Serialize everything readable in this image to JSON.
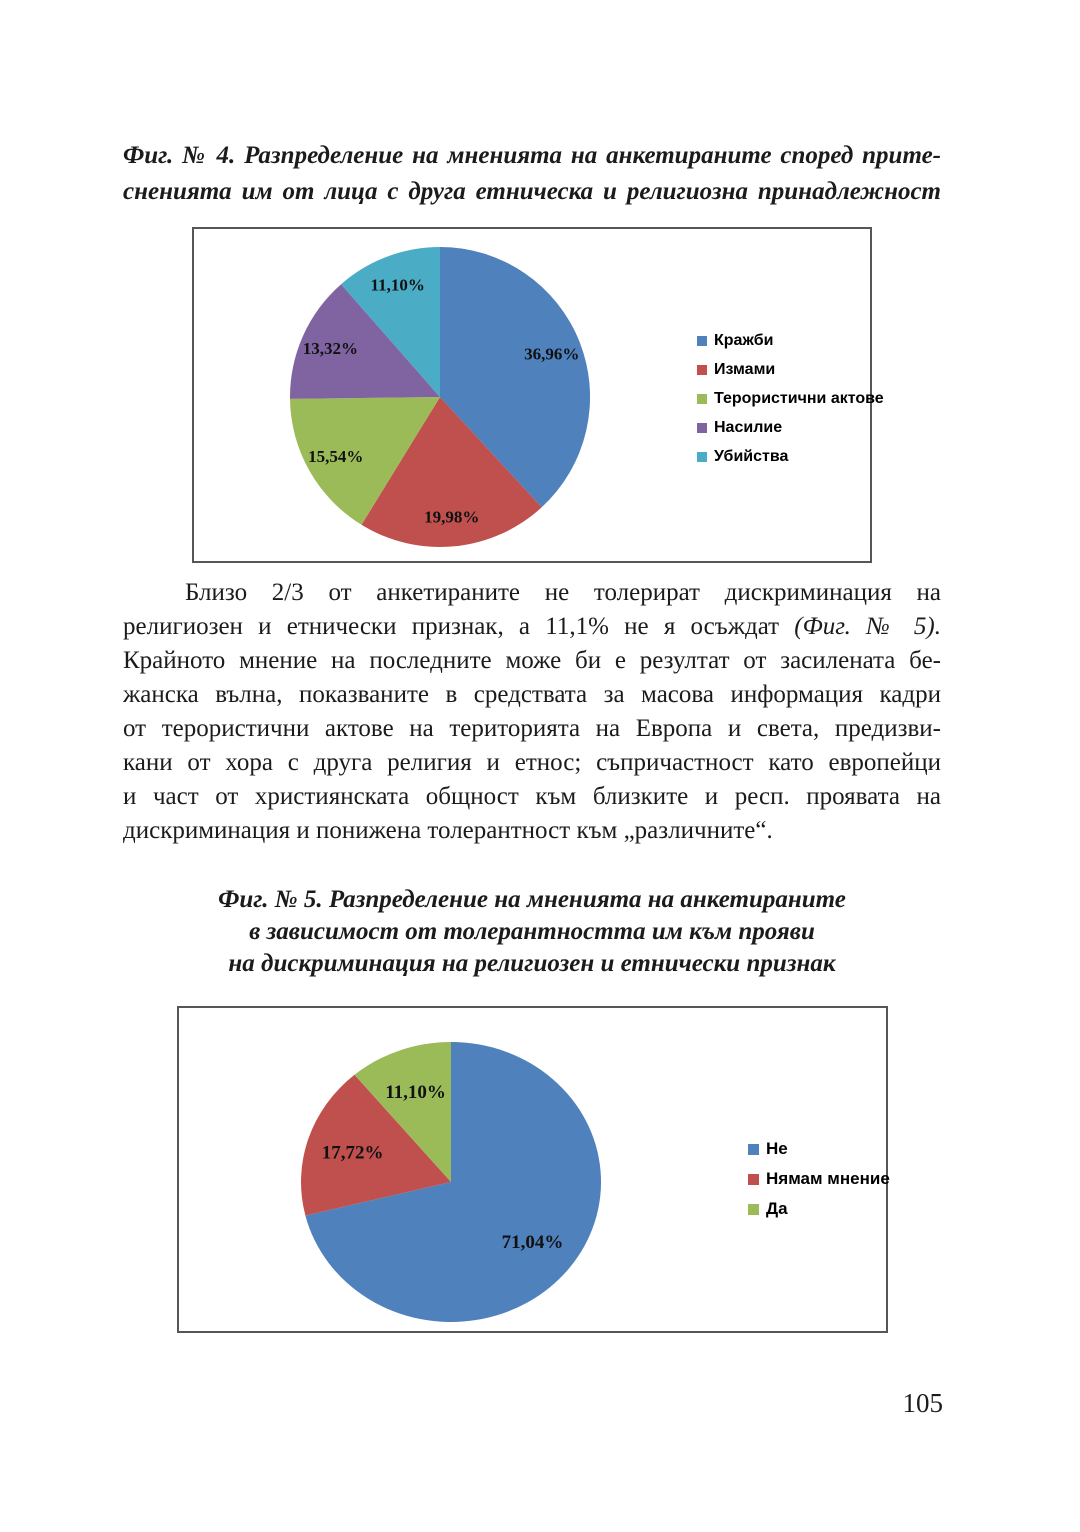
{
  "captions": {
    "fig4": [
      "Фиг. № 4. Разпределение на мненията на анкетираните според прите-",
      "сненията им от лица с друга етническа и религиозна принадлежност"
    ],
    "fig5": [
      "Фиг. № 5. Разпределение на мненията на анкетираните",
      "в зависимост от толерантността им към прояви",
      "на дискриминация на религиозен и етнически признак"
    ]
  },
  "paragraph": {
    "line1": "Близо 2/3 от анкетираните не толерират дискриминация на",
    "line2_normal": "религиозен и етнически признак, а 11,1% не я осъждат ",
    "line2_italic": "(Фиг. № 5).",
    "line3": "Крайното мнение на последните може би е резултат от засилената бе-",
    "line4": "жанска вълна, показваните в средствата за масова информация кадри",
    "line5": "от терористични актове на територията на Европа и света, предизви-",
    "line6": "кани от хора с друга религия и етнос; съпричастност като европейци",
    "line7": "и част от християнската общност към близките и респ. проявата на",
    "line8": "дискриминация и понижена толерантност към „различните“."
  },
  "page_number": "105",
  "chart_data": [
    {
      "type": "pie",
      "title": "Фиг. № 4. Разпределение на мненията на анкетираните според притесненията им от лица с друга етническа и религиозна принадлежност",
      "legend_position": "right",
      "slices": [
        {
          "label": "Кражби",
          "value": 36.96,
          "display": "36,96%",
          "color": "#4f81bd"
        },
        {
          "label": "Измами",
          "value": 19.98,
          "display": "19,98%",
          "color": "#c0504d"
        },
        {
          "label": "Терористични актове",
          "value": 15.54,
          "display": "15,54%",
          "color": "#9bbb59"
        },
        {
          "label": "Насилие",
          "value": 13.32,
          "display": "13,32%",
          "color": "#8064a2"
        },
        {
          "label": "Убийства",
          "value": 11.1,
          "display": "11,10%",
          "color": "#4bacc6"
        }
      ]
    },
    {
      "type": "pie",
      "title": "Фиг. № 5. Разпределение на мненията на анкетираните в зависимост от толерантността им към прояви на дискриминация на религиозен и етнически признак",
      "legend_position": "right",
      "slices": [
        {
          "label": "Не",
          "value": 71.04,
          "display": "71,04%",
          "color": "#4f81bd"
        },
        {
          "label": "Нямам мнение",
          "value": 17.72,
          "display": "17,72%",
          "color": "#c0504d"
        },
        {
          "label": "Да",
          "value": 11.1,
          "display": "11,10%",
          "color": "#9bbb59"
        }
      ]
    }
  ]
}
